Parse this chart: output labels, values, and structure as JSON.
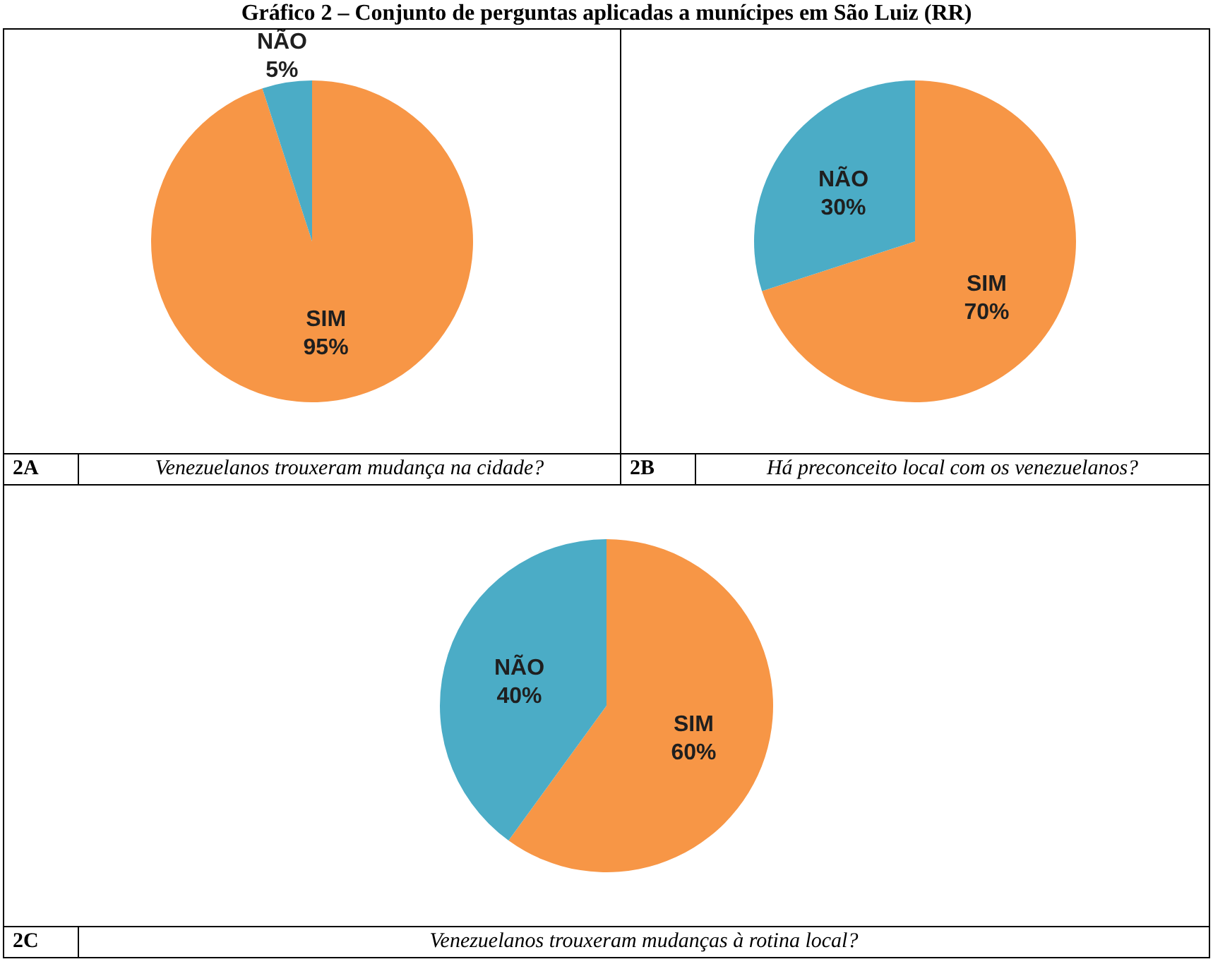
{
  "chart_data": [
    {
      "type": "pie",
      "title": "Gráfico 2 – Conjunto de perguntas aplicadas a munícipes em São Luiz (RR)",
      "annotations": [
        "2A",
        "Venezuelanos trouxeram mudança na cidade?"
      ],
      "categories": [
        "SIM",
        "NÃO"
      ],
      "values": [
        95,
        5
      ],
      "value_labels": [
        "95%",
        "5%"
      ],
      "colors": [
        "#f79646",
        "#4bacc6"
      ],
      "legend": false
    },
    {
      "type": "pie",
      "annotations": [
        "2B",
        "Há preconceito local com os venezuelanos?"
      ],
      "categories": [
        "SIM",
        "NÃO"
      ],
      "values": [
        70,
        30
      ],
      "value_labels": [
        "70%",
        "30%"
      ],
      "colors": [
        "#f79646",
        "#4bacc6"
      ],
      "legend": false
    },
    {
      "type": "pie",
      "annotations": [
        "2C",
        "Venezuelanos trouxeram mudanças à rotina local?"
      ],
      "categories": [
        "SIM",
        "NÃO"
      ],
      "values": [
        60,
        40
      ],
      "value_labels": [
        "60%",
        "40%"
      ],
      "colors": [
        "#f79646",
        "#4bacc6"
      ],
      "legend": false
    }
  ]
}
